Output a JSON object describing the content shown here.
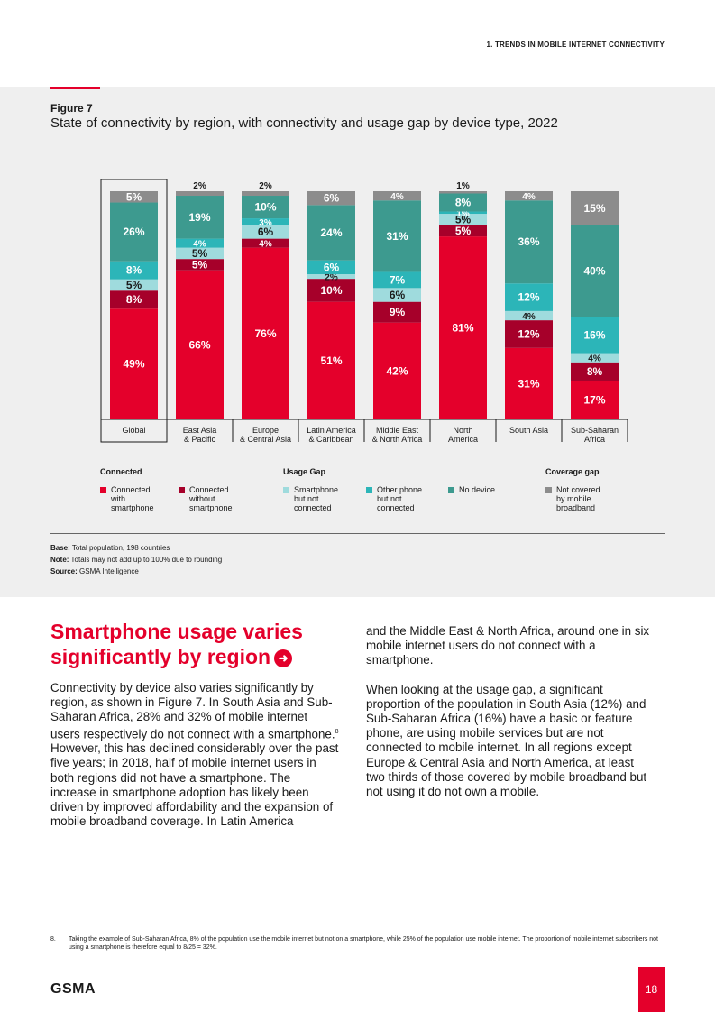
{
  "header": {
    "section": "1. TRENDS IN MOBILE INTERNET CONNECTIVITY"
  },
  "figure": {
    "label": "Figure 7",
    "title": "State of connectivity by region, with connectivity and usage gap by device type, 2022"
  },
  "colors": {
    "connected_smartphone": "#e4002b",
    "connected_without_smartphone": "#a6002a",
    "smartphone_not_connected": "#9fdbdd",
    "other_phone_not_connected": "#2cb5b8",
    "no_device": "#3d9a8f",
    "not_covered": "#8c8c8c"
  },
  "chart_data": {
    "type": "bar",
    "stacked": true,
    "categories": [
      "Global",
      "East Asia\n& Pacific",
      "Europe\n& Central Asia",
      "Latin America\n& Caribbean",
      "Middle East\n& North Africa",
      "North\nAmerica",
      "South Asia",
      "Sub-Saharan\nAfrica"
    ],
    "series": [
      {
        "name": "Connected with smartphone",
        "values": [
          49,
          66,
          76,
          51,
          42,
          81,
          31,
          17
        ]
      },
      {
        "name": "Connected without smartphone",
        "values": [
          8,
          5,
          4,
          10,
          9,
          5,
          12,
          8
        ]
      },
      {
        "name": "Smartphone but not connected",
        "values": [
          5,
          5,
          6,
          2,
          6,
          5,
          4,
          4
        ]
      },
      {
        "name": "Other phone but not connected",
        "values": [
          8,
          4,
          3,
          6,
          7,
          1,
          12,
          16
        ]
      },
      {
        "name": "No device",
        "values": [
          26,
          19,
          10,
          24,
          31,
          8,
          36,
          40
        ]
      },
      {
        "name": "Not covered by mobile broadband",
        "values": [
          5,
          2,
          2,
          6,
          4,
          1,
          4,
          15
        ]
      }
    ],
    "ylim": [
      0,
      100
    ],
    "grid": false,
    "legend": "bottom"
  },
  "legend": {
    "groups": [
      {
        "title": "Connected",
        "items": [
          {
            "label": "Connected\nwith\nsmartphone",
            "color": "#e4002b"
          },
          {
            "label": "Connected\nwithout\nsmartphone",
            "color": "#a6002a"
          }
        ]
      },
      {
        "title": "Usage Gap",
        "items": [
          {
            "label": "Smartphone\nbut not\nconnected",
            "color": "#9fdbdd"
          },
          {
            "label": "Other phone\nbut not\nconnected",
            "color": "#2cb5b8"
          },
          {
            "label": "No device",
            "color": "#3d9a8f"
          }
        ]
      },
      {
        "title": "Coverage gap",
        "items": [
          {
            "label": "Not covered\nby mobile\nbroadband",
            "color": "#8c8c8c"
          }
        ]
      }
    ]
  },
  "notes": {
    "base_label": "Base:",
    "base_text": " Total population, 198 countries",
    "note_label": "Note:",
    "note_text": " Totals may not add up to 100% due to rounding",
    "source_label": "Source:",
    "source_text": " GSMA Intelligence"
  },
  "section": {
    "heading": "Smartphone usage varies significantly by region",
    "arrow": "➜"
  },
  "body": {
    "col1_p1": "Connectivity by device also varies significantly by region, as shown in Figure 7. In South Asia and Sub-Saharan Africa, 28% and 32% of mobile internet users respectively do not connect with a smartphone.",
    "col1_footnote_ref": "8",
    "col1_p1_cont": " However, this has declined considerably over the past five years; in 2018, half of mobile internet users in both regions did not have a smartphone. The increase in smartphone adoption has likely been driven by improved affordability and the expansion of mobile broadband coverage. In Latin America",
    "col2_p1": "and the Middle East & North Africa, around one in six mobile internet users do not connect with a smartphone.",
    "col2_p2": "When looking at the usage gap, a significant proportion of the population in South Asia (12%) and Sub-Saharan Africa (16%) have a basic or feature phone, are using mobile services but are not connected to mobile internet. In all regions except Europe & Central Asia and North America, at least two thirds of those covered by mobile broadband but not using it do not own a mobile."
  },
  "footnote": {
    "number": "8.",
    "text": "Taking the example of Sub-Saharan Africa, 8% of the population use the mobile internet but not on a smartphone, while 25% of the population use mobile internet. The proportion of mobile internet subscribers not using a smartphone is therefore equal to 8/25 = 32%."
  },
  "footer": {
    "logo": "GSMA",
    "page_number": "18"
  }
}
